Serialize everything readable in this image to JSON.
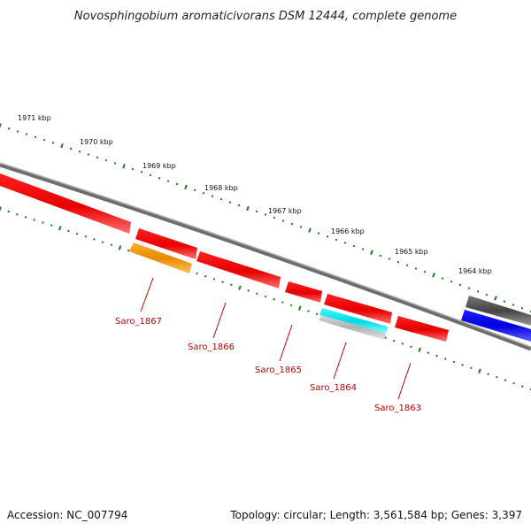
{
  "title": "Novosphingobium aromaticivorans DSM 12444, complete genome",
  "accession": "Accession: NC_007794",
  "summary": "Topology: circular; Length: 3,561,584 bp; Genes: 3,397",
  "scale_labels": [
    "1971 kbp",
    "1970 kbp",
    "1969 kbp",
    "1968 kbp",
    "1967 kbp",
    "1966 kbp",
    "1965 kbp",
    "1964 kbp"
  ],
  "gene_labels": [
    "Saro_1867",
    "Saro_1866",
    "Saro_1865",
    "Saro_1864",
    "Saro_1863"
  ],
  "colors": {
    "strand_red": "#ff0000",
    "orange": "#ff9900",
    "cyan": "#00e5ee",
    "blue": "#0000ee",
    "dark_gray": "#555555",
    "light_gray": "#bdbdbd",
    "tick_green": "#1a7a1a",
    "label_red": "#c00000"
  }
}
